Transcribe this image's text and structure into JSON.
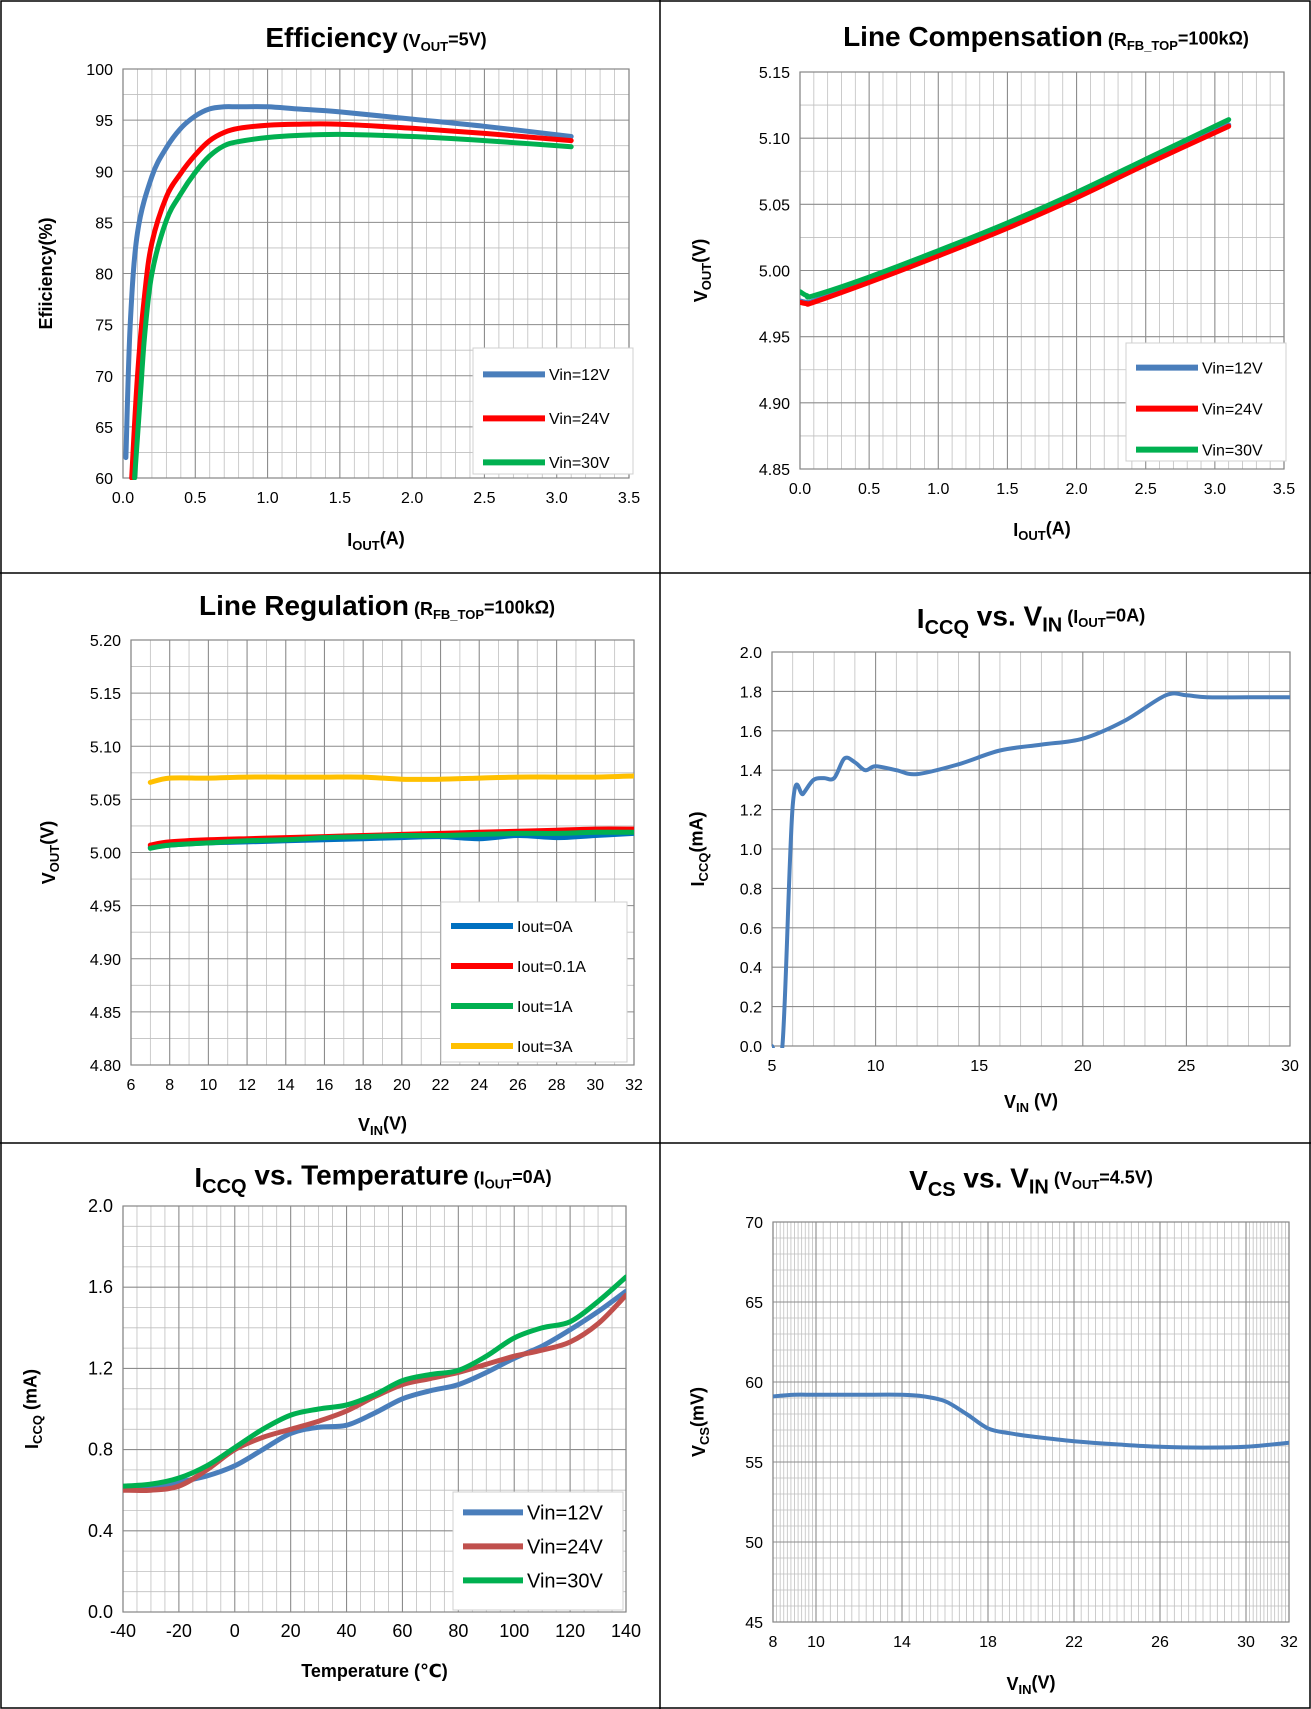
{
  "colors": {
    "blue": "#4a7ebb",
    "red": "#ff0000",
    "green": "#00b050",
    "yellow": "#ffc000",
    "darkblue": "#0070c0",
    "brick": "#c0504d"
  },
  "chart_data": [
    {
      "type": "line",
      "title": "Efficiency",
      "title_note": "(V<sub>OUT</sub>=5V)",
      "xlabel": "I<sub>OUT</sub>(A)",
      "ylabel": "Efiiciency(%)",
      "xlim": [
        0,
        3.5
      ],
      "ylim": [
        60,
        100
      ],
      "xticks": [
        "0.0",
        "0.5",
        "1.0",
        "1.5",
        "2.0",
        "2.5",
        "3.0",
        "3.5"
      ],
      "yticks": [
        "60",
        "65",
        "70",
        "75",
        "80",
        "85",
        "90",
        "95",
        "100"
      ],
      "grid": true,
      "legend_position": "bottom-right",
      "series": [
        {
          "name": "Vin=12V",
          "color": "#4a7ebb",
          "x": [
            0.02,
            0.05,
            0.1,
            0.2,
            0.3,
            0.4,
            0.5,
            0.6,
            0.7,
            0.8,
            1.0,
            1.2,
            1.5,
            2.0,
            2.5,
            3.1
          ],
          "y": [
            62,
            75,
            84,
            89.5,
            92.3,
            94.2,
            95.4,
            96.1,
            96.3,
            96.3,
            96.3,
            96.1,
            95.8,
            95.1,
            94.4,
            93.4
          ]
        },
        {
          "name": "Vin=24V",
          "color": "#ff0000",
          "x": [
            0.06,
            0.1,
            0.15,
            0.2,
            0.3,
            0.4,
            0.5,
            0.6,
            0.7,
            0.8,
            1.0,
            1.2,
            1.5,
            2.0,
            2.5,
            3.1
          ],
          "y": [
            60,
            70,
            78,
            83,
            87.5,
            89.8,
            91.6,
            93,
            93.8,
            94.2,
            94.5,
            94.6,
            94.6,
            94.2,
            93.7,
            93
          ]
        },
        {
          "name": "Vin=30V",
          "color": "#00b050",
          "x": [
            0.08,
            0.12,
            0.15,
            0.2,
            0.3,
            0.4,
            0.5,
            0.6,
            0.7,
            0.8,
            1.0,
            1.2,
            1.5,
            2.0,
            2.5,
            3.1
          ],
          "y": [
            60,
            68,
            74,
            80,
            85.2,
            87.8,
            89.9,
            91.5,
            92.5,
            92.9,
            93.3,
            93.5,
            93.6,
            93.4,
            93,
            92.4
          ]
        }
      ]
    },
    {
      "type": "line",
      "title": "Line Compensation",
      "title_note": "(R<sub>FB_TOP</sub>=100kΩ)",
      "xlabel": "I<sub>OUT</sub>(A)",
      "ylabel": "V<sub>OUT</sub>(V)",
      "xlim": [
        0,
        3.5
      ],
      "ylim": [
        4.85,
        5.15
      ],
      "xticks": [
        "0.0",
        "0.5",
        "1.0",
        "1.5",
        "2.0",
        "2.5",
        "3.0",
        "3.5"
      ],
      "yticks": [
        "4.85",
        "4.90",
        "4.95",
        "5.00",
        "5.05",
        "5.10",
        "5.15"
      ],
      "grid": true,
      "legend_position": "bottom-right",
      "series": [
        {
          "name": "Vin=12V",
          "color": "#4a7ebb",
          "x": [
            0,
            0.05,
            0.1,
            0.5,
            1.0,
            1.5,
            2.0,
            2.5,
            3.1
          ],
          "y": [
            4.977,
            4.976,
            4.977,
            4.992,
            5.012,
            5.033,
            5.056,
            5.081,
            5.11
          ]
        },
        {
          "name": "Vin=24V",
          "color": "#ff0000",
          "x": [
            0,
            0.05,
            0.1,
            0.5,
            1.0,
            1.5,
            2.0,
            2.5,
            3.1
          ],
          "y": [
            4.976,
            4.975,
            4.976,
            4.991,
            5.011,
            5.032,
            5.055,
            5.08,
            5.109
          ]
        },
        {
          "name": "Vin=30V",
          "color": "#00b050",
          "x": [
            0,
            0.05,
            0.1,
            0.5,
            1.0,
            1.5,
            2.0,
            2.5,
            3.1
          ],
          "y": [
            4.984,
            4.981,
            4.981,
            4.995,
            5.015,
            5.036,
            5.059,
            5.084,
            5.114
          ]
        }
      ]
    },
    {
      "type": "line",
      "title": "Line Regulation",
      "title_note": "(R<sub>FB_TOP</sub>=100kΩ)",
      "xlabel": "V<sub>IN</sub>(V)",
      "ylabel": "V<sub>OUT</sub>(V)",
      "xlim": [
        6,
        32
      ],
      "ylim": [
        4.8,
        5.2
      ],
      "xticks": [
        "6",
        "8",
        "10",
        "12",
        "14",
        "16",
        "18",
        "20",
        "22",
        "24",
        "26",
        "28",
        "30",
        "32"
      ],
      "yticks": [
        "4.80",
        "4.85",
        "4.90",
        "4.95",
        "5.00",
        "5.05",
        "5.10",
        "5.15",
        "5.20"
      ],
      "grid": true,
      "legend_position": "bottom-right",
      "series": [
        {
          "name": "Iout=0A",
          "color": "#0070c0",
          "x": [
            7,
            8,
            10,
            12,
            14,
            16,
            18,
            20,
            22,
            24,
            26,
            28,
            30,
            32
          ],
          "y": [
            5.005,
            5.007,
            5.009,
            5.01,
            5.011,
            5.012,
            5.013,
            5.014,
            5.015,
            5.013,
            5.016,
            5.014,
            5.016,
            5.018
          ]
        },
        {
          "name": "Iout=0.1A",
          "color": "#ff0000",
          "x": [
            7,
            8,
            10,
            12,
            14,
            16,
            18,
            20,
            22,
            24,
            26,
            28,
            30,
            32
          ],
          "y": [
            5.007,
            5.01,
            5.012,
            5.013,
            5.014,
            5.015,
            5.016,
            5.017,
            5.018,
            5.019,
            5.02,
            5.021,
            5.022,
            5.022
          ]
        },
        {
          "name": "Iout=1A",
          "color": "#00b050",
          "x": [
            7,
            8,
            10,
            12,
            14,
            16,
            18,
            20,
            22,
            24,
            26,
            28,
            30,
            32
          ],
          "y": [
            5.004,
            5.007,
            5.009,
            5.011,
            5.012,
            5.014,
            5.015,
            5.016,
            5.016,
            5.017,
            5.018,
            5.018,
            5.019,
            5.019
          ]
        },
        {
          "name": "Iout=3A",
          "color": "#ffc000",
          "x": [
            7,
            8,
            10,
            12,
            14,
            16,
            18,
            20,
            22,
            24,
            26,
            28,
            30,
            32
          ],
          "y": [
            5.066,
            5.07,
            5.07,
            5.071,
            5.071,
            5.071,
            5.071,
            5.069,
            5.069,
            5.07,
            5.071,
            5.071,
            5.071,
            5.072
          ]
        }
      ]
    },
    {
      "type": "line",
      "title": "I<sub>CCQ</sub> vs. V<sub>IN</sub>",
      "title_note": "(I<sub>OUT</sub>=0A)",
      "xlabel": "V<sub>IN</sub> (V)",
      "ylabel": "I<sub>CCQ</sub>(mA)",
      "xlim": [
        5,
        30
      ],
      "ylim": [
        0,
        2.0
      ],
      "xticks": [
        "5",
        "10",
        "15",
        "20",
        "25",
        "30"
      ],
      "yticks": [
        "0.0",
        "0.2",
        "0.4",
        "0.6",
        "0.8",
        "1.0",
        "1.2",
        "1.4",
        "1.6",
        "1.8",
        "2.0"
      ],
      "grid": true,
      "series": [
        {
          "name": "",
          "color": "#4a7ebb",
          "x": [
            5,
            5.5,
            6,
            6.5,
            7,
            7.5,
            8,
            8.5,
            9,
            9.5,
            10,
            11,
            12,
            14,
            16,
            18,
            20,
            22,
            24,
            25,
            26,
            28,
            30
          ],
          "y": [
            0,
            0,
            1.22,
            1.28,
            1.35,
            1.36,
            1.36,
            1.46,
            1.44,
            1.4,
            1.42,
            1.4,
            1.38,
            1.43,
            1.5,
            1.53,
            1.56,
            1.65,
            1.78,
            1.78,
            1.77,
            1.77,
            1.77
          ]
        }
      ]
    },
    {
      "type": "line",
      "title": "I<sub>CCQ</sub> vs. Temperature",
      "title_note": "(I<sub>OUT</sub>=0A)",
      "xlabel": "Temperature (℃)",
      "ylabel": "I<sub>CCQ</sub> (mA)",
      "xlim": [
        -40,
        140
      ],
      "ylim": [
        0,
        2.0
      ],
      "xticks": [
        "-40",
        "-20",
        "0",
        "20",
        "40",
        "60",
        "80",
        "100",
        "120",
        "140"
      ],
      "yticks": [
        "0.0",
        "0.4",
        "0.8",
        "1.2",
        "1.6",
        "2.0"
      ],
      "grid": true,
      "legend_position": "bottom-right",
      "series": [
        {
          "name": "Vin=12V",
          "color": "#4a7ebb",
          "x": [
            -40,
            -30,
            -20,
            -10,
            0,
            10,
            20,
            30,
            40,
            50,
            60,
            70,
            80,
            90,
            100,
            110,
            120,
            130,
            140
          ],
          "y": [
            0.61,
            0.61,
            0.64,
            0.67,
            0.72,
            0.8,
            0.88,
            0.91,
            0.92,
            0.98,
            1.05,
            1.09,
            1.12,
            1.18,
            1.25,
            1.31,
            1.39,
            1.48,
            1.58
          ]
        },
        {
          "name": "Vin=24V",
          "color": "#c0504d",
          "x": [
            -40,
            -30,
            -20,
            -10,
            0,
            10,
            20,
            30,
            40,
            50,
            60,
            70,
            80,
            90,
            100,
            110,
            120,
            130,
            140
          ],
          "y": [
            0.6,
            0.6,
            0.62,
            0.7,
            0.8,
            0.86,
            0.9,
            0.94,
            0.99,
            1.06,
            1.12,
            1.15,
            1.18,
            1.22,
            1.26,
            1.29,
            1.33,
            1.42,
            1.56
          ]
        },
        {
          "name": "Vin=30V",
          "color": "#00b050",
          "x": [
            -40,
            -30,
            -20,
            -10,
            0,
            10,
            20,
            30,
            40,
            50,
            60,
            70,
            80,
            90,
            100,
            110,
            120,
            130,
            140
          ],
          "y": [
            0.62,
            0.63,
            0.66,
            0.72,
            0.81,
            0.9,
            0.97,
            1.0,
            1.02,
            1.07,
            1.14,
            1.17,
            1.19,
            1.26,
            1.35,
            1.4,
            1.43,
            1.53,
            1.65
          ]
        }
      ]
    },
    {
      "type": "line",
      "title": "V<sub>CS</sub> vs. V<sub>IN</sub>",
      "title_note": "(V<sub>OUT</sub>=4.5V)",
      "xlabel": "V<sub>IN</sub>(V)",
      "ylabel": "V<sub>CS</sub>(mV)",
      "xlim": [
        8,
        32
      ],
      "ylim": [
        45,
        70
      ],
      "xticks": [
        "8",
        "10",
        "14",
        "18",
        "22",
        "26",
        "30",
        "32"
      ],
      "yticks": [
        "45",
        "50",
        "55",
        "60",
        "65",
        "70"
      ],
      "grid": true,
      "series": [
        {
          "name": "",
          "color": "#4a7ebb",
          "x": [
            8,
            9,
            10,
            12,
            14,
            15,
            16,
            17,
            18,
            19,
            20,
            22,
            24,
            26,
            28,
            30,
            32
          ],
          "y": [
            59.1,
            59.2,
            59.2,
            59.2,
            59.2,
            59.1,
            58.8,
            58,
            57.1,
            56.8,
            56.6,
            56.3,
            56.1,
            55.95,
            55.9,
            55.95,
            56.2
          ]
        }
      ]
    }
  ]
}
